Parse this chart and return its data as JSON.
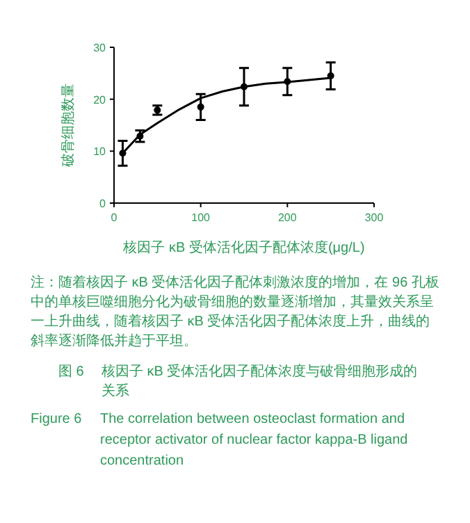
{
  "chart_data": {
    "type": "scatter",
    "xlabel": "核因子 κB 受体活化因子配体浓度(μg/L)",
    "ylabel": "破骨细胞数量",
    "xlim": [
      0,
      300
    ],
    "xticks": [
      0,
      100,
      200,
      300
    ],
    "ylim": [
      0,
      30
    ],
    "yticks": [
      0,
      10,
      20,
      30
    ],
    "grid": false,
    "series": [
      {
        "color": "#000000",
        "marker": "circle",
        "x": [
          10,
          30,
          50,
          100,
          150,
          200,
          250
        ],
        "values": [
          9.6,
          12.9,
          17.9,
          18.5,
          22.4,
          23.4,
          24.5
        ],
        "errors": [
          2.4,
          1.1,
          0.9,
          2.5,
          3.6,
          2.6,
          2.6
        ]
      },
      {
        "type": "line",
        "color": "#000000",
        "marker": "none",
        "line_style": "solid",
        "x": [
          10,
          30,
          50,
          75,
          100,
          125,
          150,
          175,
          200,
          250
        ],
        "values": [
          9.6,
          13.2,
          15.4,
          18.0,
          20.2,
          21.5,
          22.4,
          23.0,
          23.3,
          24.1
        ]
      }
    ],
    "annotations": [
      "注：随着核因子 κB 受体活化因子配体刺激浓度的增加，在 96 孔板中的单核巨噬细胞分化为破骨细胞的数量逐渐增加，其量效关系呈一上升曲线，随着核因子 κB 受体活化因子配体浓度上升，曲线的斜率逐渐降低并趋于平坦。",
      "图 6　核因子 κB 受体活化因子配体浓度与破骨细胞形成的关系",
      "Figure 6　The correlation between osteoclast formation and receptor activator of nuclear factor kappa-B ligand concentration"
    ]
  }
}
